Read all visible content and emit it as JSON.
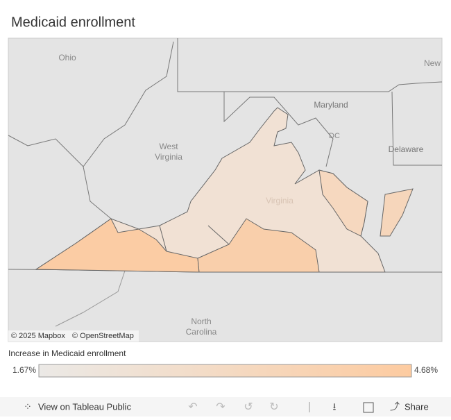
{
  "header": {
    "title": "Medicaid enrollment"
  },
  "map": {
    "labels": {
      "ohio": "Ohio",
      "maryland": "Maryland",
      "dc": "DC",
      "new": "New",
      "west_virginia": [
        "West",
        "Virginia"
      ],
      "delaware": "Delaware",
      "virginia": "Virginia",
      "north_carolina": [
        "North",
        "Carolina"
      ]
    },
    "attribution": [
      "© 2025 Mapbox",
      "© OpenStreetMap"
    ]
  },
  "legend": {
    "title": "Increase in Medicaid enrollment",
    "min": {
      "value": 1.67,
      "label": "1.67%"
    },
    "max": {
      "value": 4.68,
      "label": "4.68%"
    },
    "colors": [
      "#ebe9e6",
      "#fdcba0"
    ]
  },
  "toolbar": {
    "view": "View on Tableau Public",
    "share": "Share"
  }
}
